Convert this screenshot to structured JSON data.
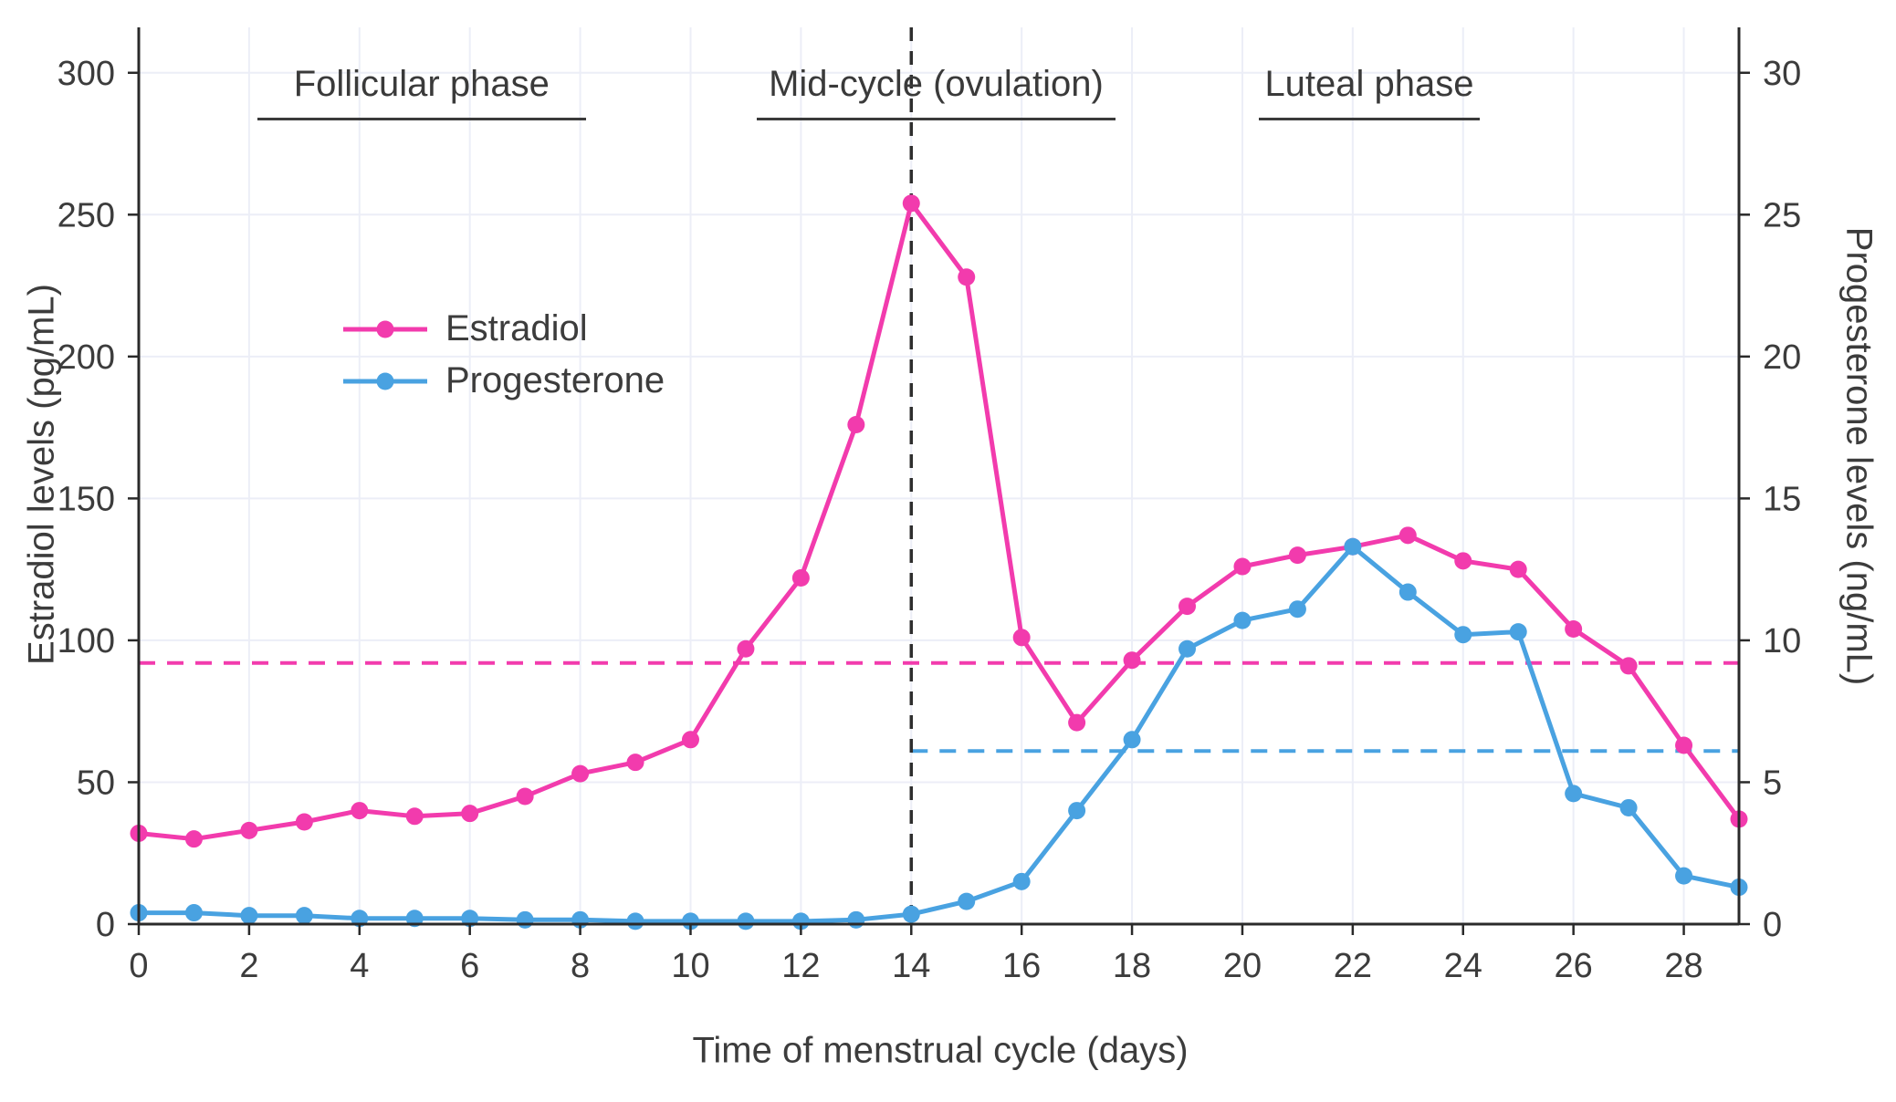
{
  "chart_data": {
    "type": "line",
    "title": "",
    "xlabel": "Time of menstrual cycle (days)",
    "ylabel_left": "Estradiol levels (pg/mL)",
    "ylabel_right": "Progesterone levels (ng/mL)",
    "xlim": [
      0,
      29
    ],
    "ylim_left": [
      0,
      316
    ],
    "ylim_right": [
      0,
      31.6
    ],
    "xticks": [
      0,
      2,
      4,
      6,
      8,
      10,
      12,
      14,
      16,
      18,
      20,
      22,
      24,
      26,
      28
    ],
    "yticks_left": [
      0,
      50,
      100,
      150,
      200,
      250,
      300
    ],
    "yticks_right": [
      0,
      5,
      10,
      15,
      20,
      25,
      30
    ],
    "grid": true,
    "legend_position": "upper-left-inside",
    "x": [
      0,
      1,
      2,
      3,
      4,
      5,
      6,
      7,
      8,
      9,
      10,
      11,
      12,
      13,
      14,
      15,
      16,
      17,
      18,
      19,
      20,
      21,
      22,
      23,
      24,
      25,
      26,
      27,
      28,
      29
    ],
    "series": [
      {
        "name": "Estradiol",
        "axis": "left",
        "color": "#f23bad",
        "values": [
          32,
          30,
          33,
          36,
          40,
          38,
          39,
          45,
          53,
          57,
          65,
          97,
          122,
          176,
          254,
          228,
          101,
          71,
          93,
          112,
          126,
          130,
          133,
          137,
          128,
          125,
          104,
          91,
          63,
          37
        ]
      },
      {
        "name": "Progesterone",
        "axis": "right",
        "color": "#49a2e1",
        "values": [
          0.4,
          0.4,
          0.3,
          0.3,
          0.2,
          0.2,
          0.2,
          0.15,
          0.15,
          0.1,
          0.1,
          0.1,
          0.1,
          0.15,
          0.35,
          0.8,
          1.5,
          4,
          6.5,
          9.7,
          10.7,
          11.1,
          13.3,
          11.7,
          10.2,
          10.3,
          4.6,
          4.1,
          1.7,
          1.3
        ]
      }
    ],
    "reference_lines": [
      {
        "name": "estradiol-threshold",
        "orientation": "horizontal",
        "axis": "left",
        "value": 92,
        "from_day": 0,
        "to_day": 29,
        "color": "#f23bad"
      },
      {
        "name": "progesterone-threshold",
        "orientation": "horizontal",
        "axis": "right",
        "value": 6.1,
        "from_day": 14,
        "to_day": 29,
        "color": "#49a2e1"
      },
      {
        "name": "ovulation-day",
        "orientation": "vertical",
        "day": 14,
        "color": "#2e2e2e"
      }
    ],
    "annotations": [
      {
        "text": "Follicular phase",
        "underline_from_day": 2.15,
        "underline_to_day": 8.1
      },
      {
        "text": "Mid-cycle (ovulation)",
        "underline_from_day": 11.2,
        "underline_to_day": 17.7
      },
      {
        "text": "Luteal phase",
        "underline_from_day": 20.3,
        "underline_to_day": 24.3
      }
    ],
    "colors": {
      "grid": "#eceef7",
      "axis": "#2a2a2a",
      "text": "#3c3c3c"
    }
  }
}
